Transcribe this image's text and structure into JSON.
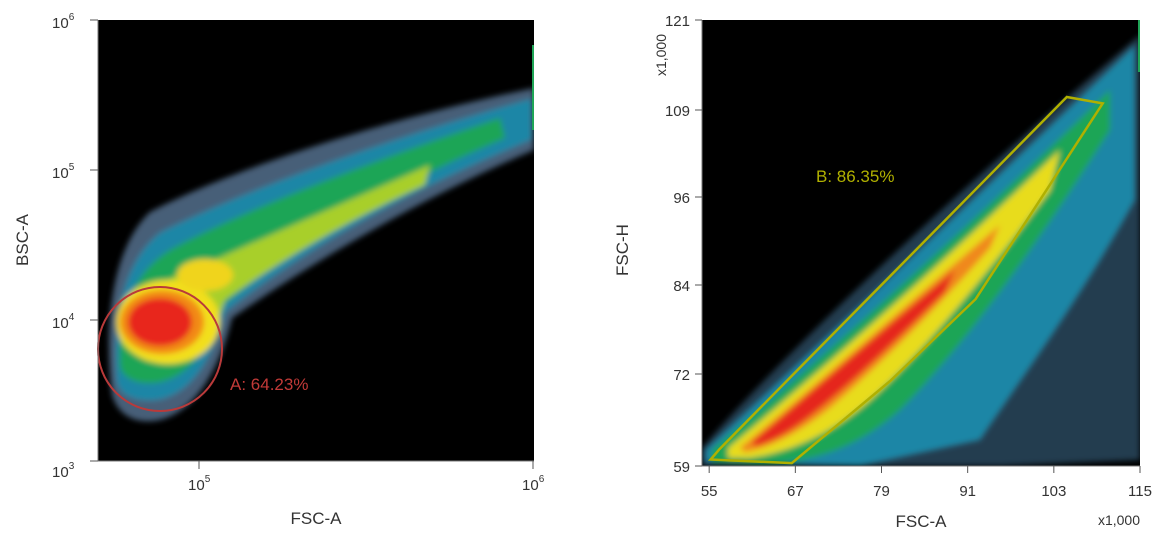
{
  "chart_data": [
    {
      "type": "scatter",
      "plot_style": "density",
      "title": "",
      "xlabel": "FSC-A",
      "ylabel": "BSC-A",
      "x_scale": "log",
      "y_scale": "log",
      "xlim": [
        50000,
        1000000
      ],
      "ylim": [
        1000,
        1000000
      ],
      "x_ticks": [
        {
          "value": 100000,
          "base": "10",
          "exp": "5"
        },
        {
          "value": 1000000,
          "base": "10",
          "exp": "6"
        }
      ],
      "y_ticks": [
        {
          "value": 1000,
          "base": "10",
          "exp": "3"
        },
        {
          "value": 10000,
          "base": "10",
          "exp": "4"
        },
        {
          "value": 100000,
          "base": "10",
          "exp": "5"
        },
        {
          "value": 1000000,
          "base": "10",
          "exp": "6"
        }
      ],
      "density_peak": {
        "x": 78000,
        "y": 9500
      },
      "gate": {
        "name": "A",
        "shape": "ellipse",
        "label": "A: 64.23%",
        "percent": 64.23,
        "color": "#b93a3a",
        "center": {
          "x": 78000,
          "y": 6800
        },
        "x_range": [
          58000,
          118000
        ],
        "y_range": [
          2400,
          18500
        ]
      },
      "background": "#000000"
    },
    {
      "type": "scatter",
      "plot_style": "density",
      "title": "",
      "xlabel": "FSC-A",
      "ylabel": "FSC-H",
      "x_scale": "linear",
      "y_scale": "linear",
      "x_multiplier": "x1,000",
      "y_multiplier": "x1,000",
      "xlim": [
        54,
        115
      ],
      "ylim": [
        59,
        121
      ],
      "x_ticks": [
        "55",
        "67",
        "79",
        "91",
        "103",
        "115"
      ],
      "y_ticks": [
        "59",
        "72",
        "84",
        "96",
        "109",
        "121"
      ],
      "gate": {
        "name": "B",
        "shape": "polygon",
        "label": "B: 86.35%",
        "percent": 86.35,
        "color": "#b0b000",
        "vertices": [
          [
            55.2,
            59.9
          ],
          [
            56.4,
            61.3
          ],
          [
            104.8,
            110.3
          ],
          [
            109.8,
            109.4
          ],
          [
            92.1,
            82.2
          ],
          [
            80.3,
            70.9
          ],
          [
            66.5,
            59.4
          ]
        ]
      },
      "background": "#000000"
    }
  ]
}
